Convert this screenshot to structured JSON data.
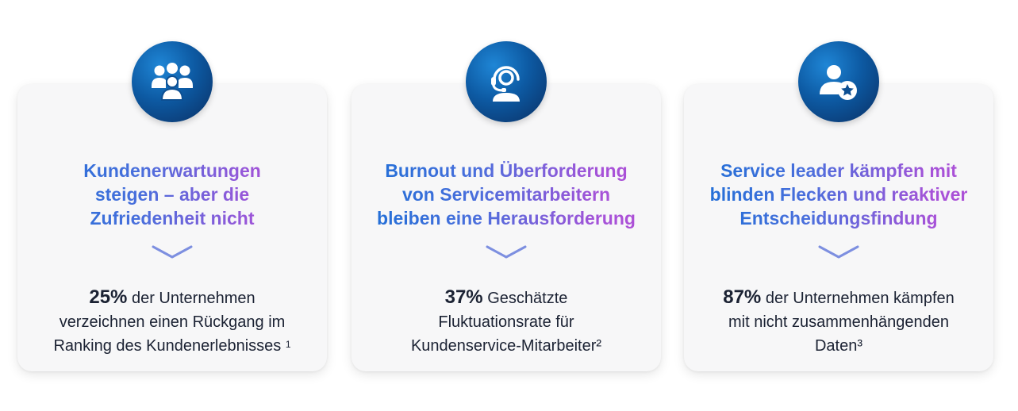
{
  "cards": [
    {
      "icon": "group-icon",
      "heading": [
        "Kundenerwartungen",
        "steigen – aber die",
        "Zufriedenheit nicht"
      ],
      "percent": "25%",
      "lines": [
        "der Unternehmen",
        "verzeichnen einen Rückgang im",
        "Ranking des Kundenerlebnisses"
      ],
      "footnote": "1"
    },
    {
      "icon": "headset-agent-icon",
      "heading": [
        "Burnout und Überforderung",
        "von Servicemitarbeitern",
        "bleiben eine Herausforderung"
      ],
      "percent": "37%",
      "lines": [
        "Geschätzte",
        "Fluktuationsrate für",
        "Kundenservice-Mitarbeiter²"
      ],
      "footnote": ""
    },
    {
      "icon": "user-star-icon",
      "heading": [
        "Service leader kämpfen mit",
        "blinden Flecken und reaktiver",
        "Entscheidungsfindung"
      ],
      "percent": "87%",
      "lines": [
        "der Unternehmen kämpfen",
        "mit nicht zusammenhängenden",
        "Daten³"
      ],
      "footnote": ""
    }
  ],
  "colors": {
    "icon_dark": "#0a2f63",
    "icon_light": "#1f86d6",
    "heading_start": "#1a6fd6",
    "heading_end": "#b24fd6",
    "chevron": "#7d8fe0",
    "stat_text": "#1b2233"
  }
}
